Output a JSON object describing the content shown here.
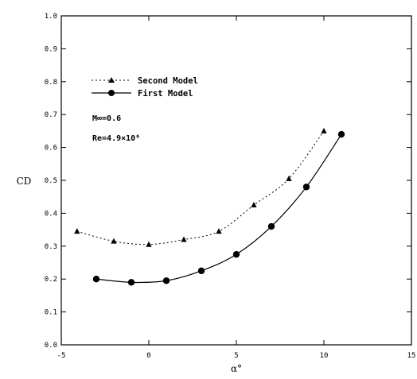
{
  "chart_data": {
    "type": "line",
    "xlabel": "α°",
    "ylabel": "CD",
    "xlim": [
      -5,
      15
    ],
    "ylim": [
      0,
      1.0
    ],
    "x_ticks": [
      "-5",
      "0",
      "5",
      "10",
      "15"
    ],
    "y_ticks": [
      "0.0",
      "0.1",
      "0.2",
      "0.3",
      "0.4",
      "0.5",
      "0.6",
      "0.7",
      "0.8",
      "0.9",
      "1.0"
    ],
    "grid": false,
    "legend_position": "upper-left",
    "series": [
      {
        "name": "Second Model",
        "marker": "triangle",
        "line_style": "dotted",
        "points": [
          {
            "x": -4.1,
            "y": 0.345
          },
          {
            "x": -2.0,
            "y": 0.315
          },
          {
            "x": 0.0,
            "y": 0.305
          },
          {
            "x": 2.0,
            "y": 0.32
          },
          {
            "x": 4.0,
            "y": 0.345
          },
          {
            "x": 6.0,
            "y": 0.425
          },
          {
            "x": 8.0,
            "y": 0.505
          },
          {
            "x": 10.0,
            "y": 0.65
          }
        ]
      },
      {
        "name": "First Model",
        "marker": "circle",
        "line_style": "solid",
        "points": [
          {
            "x": -3.0,
            "y": 0.2
          },
          {
            "x": -1.0,
            "y": 0.19
          },
          {
            "x": 1.0,
            "y": 0.195
          },
          {
            "x": 3.0,
            "y": 0.225
          },
          {
            "x": 5.0,
            "y": 0.275
          },
          {
            "x": 7.0,
            "y": 0.36
          },
          {
            "x": 9.0,
            "y": 0.48
          },
          {
            "x": 11.0,
            "y": 0.64
          }
        ]
      }
    ],
    "annotations": {
      "mach": "M∞=0.6",
      "reynolds": "Re=4.9×10⁶"
    }
  }
}
